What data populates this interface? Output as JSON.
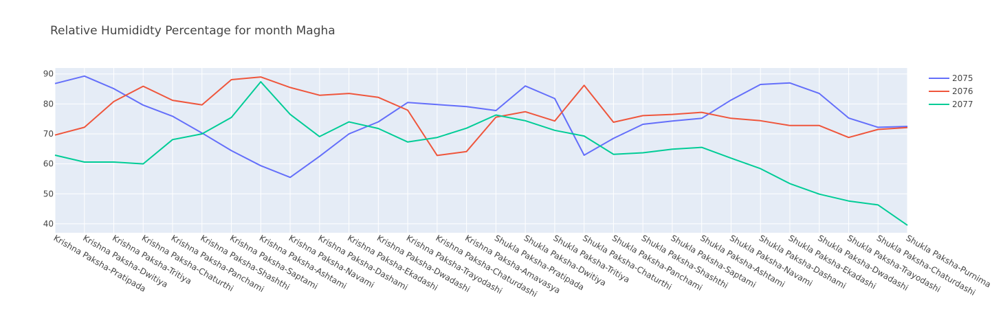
{
  "chart_data": {
    "type": "line",
    "title": "Relative Humididty Percentage for month Magha",
    "xlabel": "",
    "ylabel": "",
    "ylim": [
      37.0,
      92.0
    ],
    "yticks": [
      40,
      50,
      60,
      70,
      80,
      90
    ],
    "grid": true,
    "legend_position": "top-right",
    "categories": [
      "Krishna Paksha-Pratipada",
      "Krishna Paksha-Dwitiya",
      "Krishna Paksha-Tritiya",
      "Krishna Paksha-Chaturthi",
      "Krishna Paksha-Panchami",
      "Krishna Paksha-Shashthi",
      "Krishna Paksha-Saptami",
      "Krishna Paksha-Ashtami",
      "Krishna Paksha-Navami",
      "Krishna Paksha-Dashami",
      "Krishna Paksha-Ekadashi",
      "Krishna Paksha-Dwadashi",
      "Krishna Paksha-Trayodashi",
      "Krishna Paksha-Chaturdashi",
      "Krishna Paksha-Amavasya",
      "Shukla Paksha-Pratipada",
      "Shukla Paksha-Dwitiya",
      "Shukla Paksha-Tritiya",
      "Shukla Paksha-Chaturthi",
      "Shukla Paksha-Panchami",
      "Shukla Paksha-Shashthi",
      "Shukla Paksha-Saptami",
      "Shukla Paksha-Ashtami",
      "Shukla Paksha-Navami",
      "Shukla Paksha-Dashami",
      "Shukla Paksha-Ekadashi",
      "Shukla Paksha-Dwadashi",
      "Shukla Paksha-Trayodashi",
      "Shukla Paksha-Chaturdashi",
      "Shukla Paksha-Purnima"
    ],
    "series": [
      {
        "name": "2075",
        "color": "#636efa",
        "values": [
          86.8,
          89.3,
          85.1,
          79.6,
          75.9,
          70.3,
          64.4,
          59.4,
          55.5,
          62.5,
          70.0,
          74.0,
          80.5,
          79.8,
          79.1,
          77.8,
          86.0,
          81.8,
          62.9,
          68.5,
          73.2,
          74.3,
          75.2,
          81.3,
          86.5,
          87.0,
          83.5,
          75.3,
          72.2,
          72.5
        ]
      },
      {
        "name": "2076",
        "color": "#ef553b",
        "values": [
          69.6,
          72.2,
          80.8,
          85.9,
          81.2,
          79.7,
          88.1,
          89.0,
          85.5,
          82.9,
          83.5,
          82.2,
          77.9,
          62.8,
          64.1,
          75.6,
          77.4,
          74.3,
          86.2,
          73.9,
          76.1,
          76.5,
          77.2,
          75.2,
          74.4,
          72.8,
          72.8,
          68.8,
          71.5,
          72.1
        ]
      },
      {
        "name": "2077",
        "color": "#00cc96",
        "values": [
          62.9,
          60.6,
          60.6,
          60.0,
          68.1,
          70.0,
          75.5,
          87.4,
          76.5,
          69.1,
          74.0,
          71.8,
          67.3,
          68.8,
          71.9,
          76.3,
          74.4,
          71.2,
          69.3,
          63.2,
          63.7,
          64.9,
          65.5,
          61.9,
          58.4,
          53.4,
          49.9,
          47.6,
          46.3,
          39.5
        ]
      }
    ]
  }
}
